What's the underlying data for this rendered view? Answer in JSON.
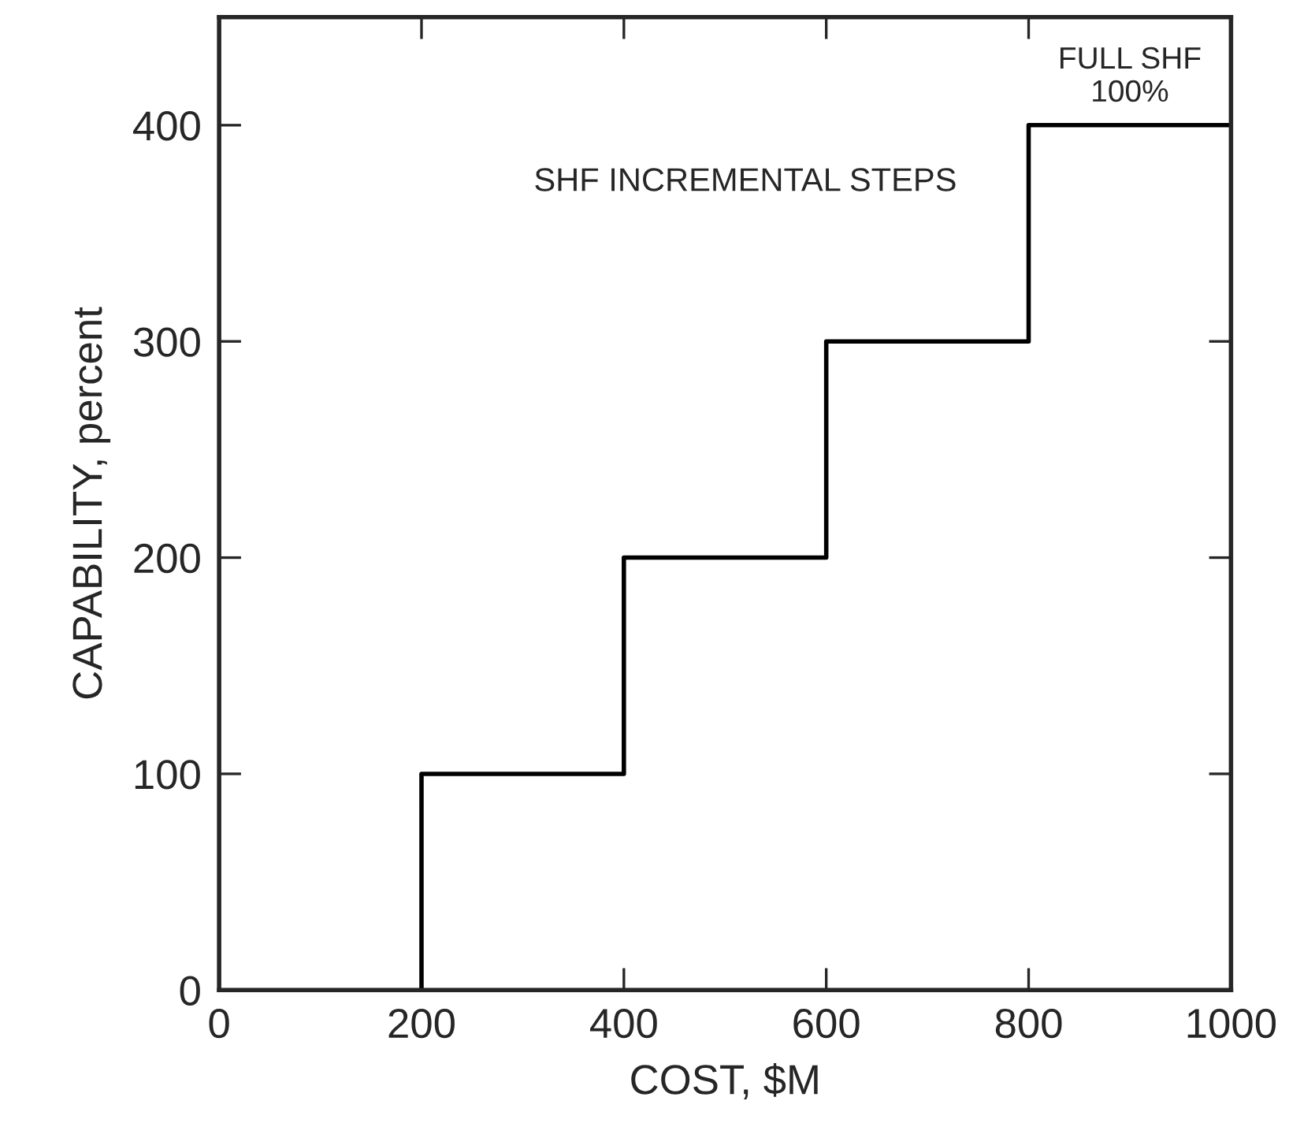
{
  "chart_data": {
    "type": "step",
    "xlabel": "COST, $M",
    "ylabel": "CAPABILITY, percent",
    "x": [
      200,
      400,
      600,
      800,
      1000
    ],
    "series": [
      {
        "color": "#000000",
        "values": [
          0,
          100,
          200,
          300,
          400
        ]
      }
    ],
    "xlim": [
      0,
      1000
    ],
    "ylim": [
      0,
      450
    ],
    "xticks": [
      0,
      200,
      400,
      600,
      800,
      1000
    ],
    "yticks": [
      0,
      100,
      200,
      300,
      400
    ],
    "grid": false,
    "legend": false,
    "line_style": "solid",
    "marker": "none",
    "annotations": [
      "SHF INCREMENTAL STEPS",
      {
        "text": "FULL SHF\n100%",
        "x": 900,
        "y": 400
      }
    ]
  }
}
